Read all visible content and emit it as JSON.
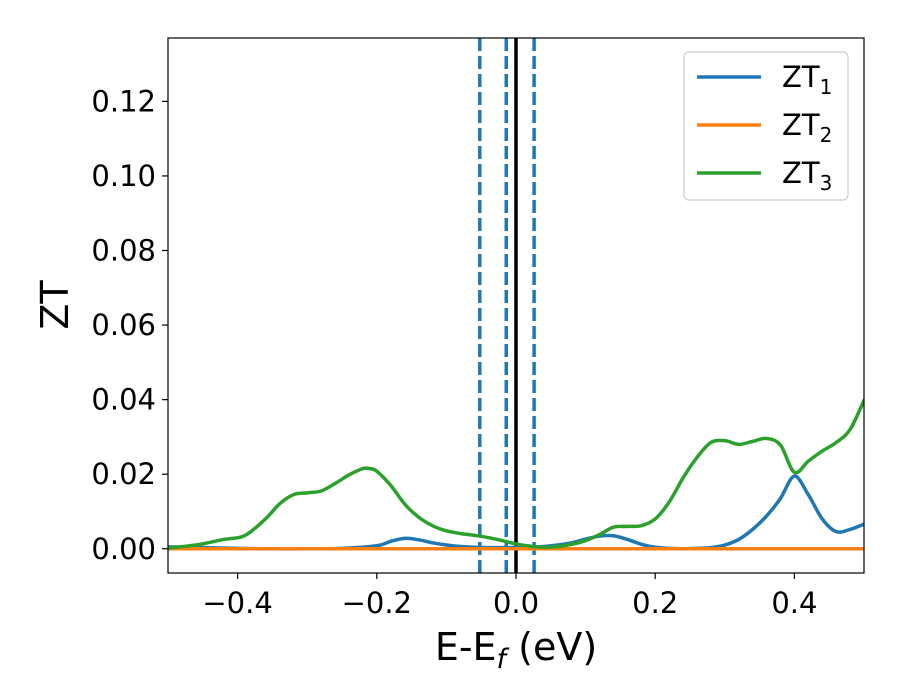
{
  "chart_data": {
    "type": "line",
    "xlabel": "E-E",
    "xlabel_sub": "f",
    "xlabel_unit": " (eV)",
    "ylabel": "ZT",
    "xlim": [
      -0.5,
      0.5
    ],
    "ylim": [
      -0.0065,
      0.137
    ],
    "xticks": [
      -0.4,
      -0.2,
      0.0,
      0.2,
      0.4
    ],
    "xtick_labels": [
      "−0.4",
      "−0.2",
      "0.0",
      "0.2",
      "0.4"
    ],
    "yticks": [
      0.0,
      0.02,
      0.04,
      0.06,
      0.08,
      0.1,
      0.12
    ],
    "ytick_labels": [
      "0.00",
      "0.02",
      "0.04",
      "0.06",
      "0.08",
      "0.10",
      "0.12"
    ],
    "grid": false,
    "legend_position": "top-right",
    "vertical_lines": [
      {
        "x": -0.052,
        "style": "dashed",
        "color": "#1f77b4"
      },
      {
        "x": -0.014,
        "style": "dashed",
        "color": "#1f77b4"
      },
      {
        "x": 0.0,
        "style": "solid",
        "color": "#000000"
      },
      {
        "x": 0.026,
        "style": "dashed",
        "color": "#1f77b4"
      }
    ],
    "series": [
      {
        "name": "ZT",
        "sub": "1",
        "color": "#1f77b4",
        "x": [
          -0.5,
          -0.45,
          -0.4,
          -0.35,
          -0.3,
          -0.25,
          -0.2,
          -0.18,
          -0.16,
          -0.14,
          -0.12,
          -0.1,
          -0.08,
          -0.06,
          -0.04,
          -0.02,
          0.0,
          0.02,
          0.04,
          0.06,
          0.08,
          0.1,
          0.12,
          0.14,
          0.16,
          0.18,
          0.2,
          0.22,
          0.24,
          0.26,
          0.28,
          0.3,
          0.32,
          0.34,
          0.36,
          0.38,
          0.4,
          0.42,
          0.44,
          0.46,
          0.48,
          0.5
        ],
        "y": [
          0.0005,
          0.0003,
          0.0001,
          0.0,
          0.0,
          0.0001,
          0.0008,
          0.002,
          0.0028,
          0.0024,
          0.0016,
          0.001,
          0.0006,
          0.0004,
          0.0003,
          0.0003,
          0.0003,
          0.0004,
          0.0006,
          0.001,
          0.0016,
          0.0026,
          0.0034,
          0.0035,
          0.0025,
          0.0012,
          0.0004,
          0.0001,
          0.0,
          0.0001,
          0.0003,
          0.001,
          0.0025,
          0.0052,
          0.0088,
          0.0135,
          0.0195,
          0.0145,
          0.008,
          0.0046,
          0.0052,
          0.0066
        ]
      },
      {
        "name": "ZT",
        "sub": "2",
        "color": "#ff7f0e",
        "x": [
          -0.5,
          -0.45,
          -0.4,
          -0.35,
          -0.3,
          -0.25,
          -0.2,
          -0.18,
          -0.16,
          -0.14,
          -0.12,
          -0.1,
          -0.08,
          -0.06,
          -0.04,
          -0.02,
          0.0,
          0.02,
          0.04,
          0.06,
          0.08,
          0.1,
          0.12,
          0.14,
          0.16,
          0.18,
          0.2,
          0.22,
          0.24,
          0.26,
          0.28,
          0.3,
          0.32,
          0.34,
          0.36,
          0.38,
          0.4,
          0.42,
          0.44,
          0.46,
          0.48,
          0.5
        ],
        "y": [
          0.0,
          0.0,
          0.0,
          0.0,
          0.0,
          0.0,
          0.0,
          0.0,
          0.0,
          0.0,
          0.0,
          0.0,
          0.0,
          0.0,
          0.0,
          0.0,
          0.0,
          0.0,
          0.0,
          0.0,
          0.0,
          0.0,
          0.0,
          0.0,
          0.0,
          0.0,
          0.0,
          0.0,
          0.0,
          0.0,
          0.0,
          0.0,
          0.0,
          0.0,
          0.0,
          0.0,
          0.0,
          0.0,
          0.0,
          0.0,
          0.0,
          0.0
        ]
      },
      {
        "name": "ZT",
        "sub": "3",
        "color": "#2ca02c",
        "x": [
          -0.5,
          -0.46,
          -0.42,
          -0.39,
          -0.36,
          -0.34,
          -0.32,
          -0.3,
          -0.28,
          -0.26,
          -0.24,
          -0.22,
          -0.21,
          -0.2,
          -0.18,
          -0.16,
          -0.14,
          -0.12,
          -0.1,
          -0.08,
          -0.06,
          -0.04,
          -0.02,
          0.0,
          0.02,
          0.04,
          0.06,
          0.08,
          0.1,
          0.12,
          0.14,
          0.16,
          0.18,
          0.2,
          0.22,
          0.24,
          0.26,
          0.28,
          0.3,
          0.32,
          0.34,
          0.36,
          0.38,
          0.4,
          0.42,
          0.44,
          0.46,
          0.48,
          0.5
        ],
        "y": [
          0.0002,
          0.001,
          0.0025,
          0.0035,
          0.008,
          0.012,
          0.0145,
          0.015,
          0.0155,
          0.0175,
          0.0198,
          0.0215,
          0.0215,
          0.0208,
          0.017,
          0.012,
          0.0085,
          0.0062,
          0.0048,
          0.0041,
          0.0036,
          0.003,
          0.0022,
          0.0013,
          0.0007,
          0.0004,
          0.0006,
          0.0012,
          0.0022,
          0.0038,
          0.0058,
          0.006,
          0.0062,
          0.008,
          0.0125,
          0.019,
          0.0245,
          0.0285,
          0.029,
          0.028,
          0.0288,
          0.0296,
          0.0278,
          0.0205,
          0.0235,
          0.0262,
          0.0285,
          0.032,
          0.0398
        ]
      }
    ]
  }
}
